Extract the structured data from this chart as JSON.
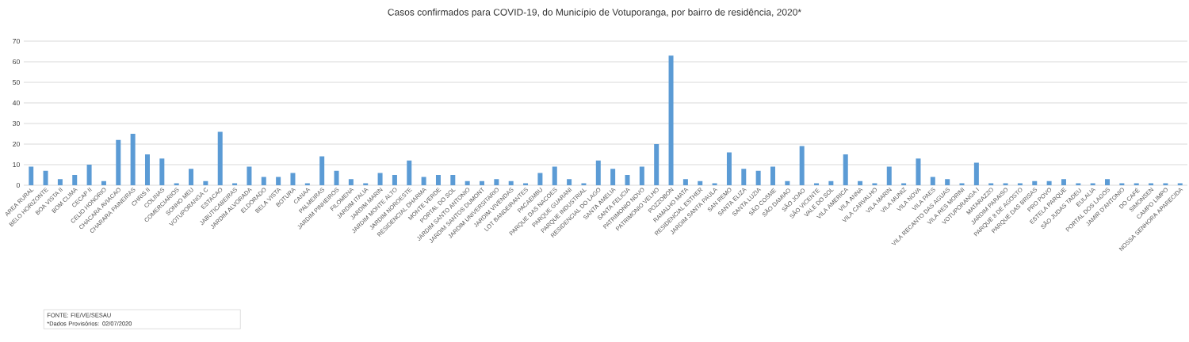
{
  "chart_data": {
    "type": "bar",
    "title": "Casos confirmados para COVID-19, do Município de Votuporanga, por bairro de residência, 2020*",
    "categories": [
      "AREA RURAL",
      "BELO HORIZONTE",
      "BOA VISTA II",
      "BOM CLIMA",
      "CECAP II",
      "CELIO HONORIO",
      "CHACARA AVIACAO",
      "CHARARA PAINEIRAS",
      "CHRIS II",
      "COLINAS",
      "COMERCIARIOS",
      "SONHO MEU",
      "VOTUPORANGA C",
      "ESTACAO",
      "JABUTICABEIRAS",
      "JARDIM ALVORADA",
      "ELDORADO",
      "BELA VISTA",
      "BOTURA",
      "CANAA",
      "PALMEIRAS",
      "JARDIM PINHEIROS",
      "FILOMENA",
      "JARDIM ITALIA",
      "JARDIM MARIN",
      "JARDIM MONTE ALTO",
      "JARDIM NOROESTE",
      "RESIDENCIAL DHARMA",
      "MONTE VERDE",
      "PORTAL DO SOL",
      "JARDIM SANTO ANTONIO",
      "JARDIM SANTOS DUMONT",
      "JARDIM UNIVERSITARIO",
      "JARDIM VIVENDAS",
      "LOT BANDEIRANTES",
      "PACAEMBU",
      "PARQUE DAS NACOES",
      "PARQUE GUARANI",
      "PARQUE INDUSTRIAL",
      "RESIDENCIAL DO LAGO",
      "SANTA AMELIA",
      "SANTA FELICIA",
      "PATRIMONIO NOVO",
      "PATRIMONIO VELHO",
      "POZZOBON",
      "RAMALHO MATA",
      "RESIDENCIAL ESTHER",
      "JARDIM SANTA PAULA",
      "SAN REMO",
      "SANTA ELIZA",
      "SANTA LUZIA",
      "SÃO COSME",
      "SÃO DAMIAO",
      "SÃO JOAO",
      "SÃO VICENTE",
      "VALE DO SOL",
      "VILA AMERICA",
      "VILA ANNA",
      "VILA CARVALHO",
      "VILA MARIN",
      "VILA MUNIZ",
      "VILA NOVA",
      "VILA PAES",
      "VILA RECANTO DAS AGUAS",
      "VILA RES MORINI",
      "VOTUPORANGA I",
      "MATARAZZO",
      "JARDIM PARAISO",
      "PARQUE 8 DE AGOSTO",
      "PARQUE DAS BRISAS",
      "PRO POVO",
      "ESTELA PARQUE",
      "SÃO JUDAS TADEU",
      "EULALIA",
      "PORTAL DOS LAGOS",
      "JAMIR D'ANTONIO",
      "DO CAFÉ",
      "SIMONSEN",
      "CAMPO LIMPO",
      "NOSSA SENHORA APARECIDA"
    ],
    "values": [
      9,
      7,
      3,
      5,
      10,
      2,
      22,
      25,
      15,
      13,
      1,
      8,
      2,
      26,
      1,
      9,
      4,
      4,
      6,
      1,
      14,
      7,
      3,
      1,
      6,
      5,
      12,
      4,
      5,
      5,
      2,
      2,
      3,
      2,
      1,
      6,
      9,
      3,
      1,
      12,
      8,
      5,
      9,
      20,
      63,
      3,
      2,
      1,
      16,
      8,
      7,
      9,
      2,
      19,
      1,
      2,
      15,
      2,
      1,
      9,
      1,
      13,
      4,
      3,
      1,
      11,
      1,
      1,
      1,
      2,
      2,
      3,
      1,
      1,
      3,
      1,
      1,
      1,
      1,
      1
    ],
    "color": "#5b9bd5",
    "ylim": [
      0,
      70
    ],
    "yticks": [
      0,
      10,
      20,
      30,
      40,
      50,
      60,
      70
    ],
    "grid": "y",
    "annotations": [
      "FONTE: FIE/VE/SESAU",
      "*Dados Provisórios: 02/07/2020"
    ]
  }
}
